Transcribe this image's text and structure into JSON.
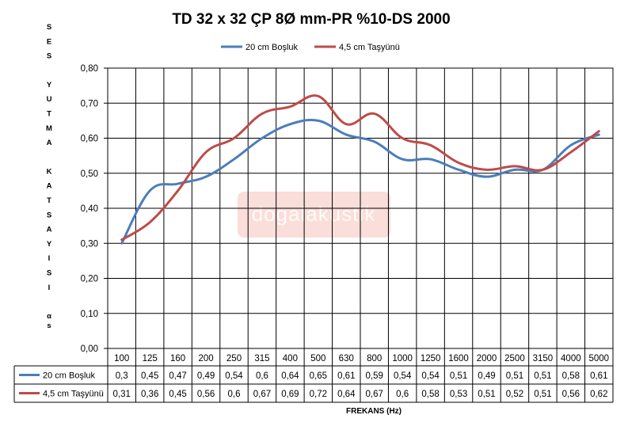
{
  "chart_data": {
    "type": "line",
    "title": "TD 32 x 32 ÇP 8Ø mm-PR %10-DS 2000",
    "ylabel": "SES YUTMA KATSAYISI αs",
    "xlabel": "FREKANS (Hz)",
    "categories": [
      "100",
      "125",
      "160",
      "200",
      "250",
      "315",
      "400",
      "500",
      "630",
      "800",
      "1000",
      "1250",
      "1600",
      "2000",
      "2500",
      "3150",
      "4000",
      "5000"
    ],
    "ylim": [
      0,
      0.8
    ],
    "yticks": [
      "0,00",
      "0,10",
      "0,20",
      "0,30",
      "0,40",
      "0,50",
      "0,60",
      "0,70",
      "0,80"
    ],
    "grid": true,
    "legend_position": "top",
    "series": [
      {
        "name": "20 cm Boşluk",
        "color": "#4a7ebb",
        "values": [
          0.3,
          0.45,
          0.47,
          0.49,
          0.54,
          0.6,
          0.64,
          0.65,
          0.61,
          0.59,
          0.54,
          0.54,
          0.51,
          0.49,
          0.51,
          0.51,
          0.58,
          0.61
        ],
        "labels": [
          "0,3",
          "0,45",
          "0,47",
          "0,49",
          "0,54",
          "0,6",
          "0,64",
          "0,65",
          "0,61",
          "0,59",
          "0,54",
          "0,54",
          "0,51",
          "0,49",
          "0,51",
          "0,51",
          "0,58",
          "0,61"
        ]
      },
      {
        "name": "4,5 cm Taşyünü",
        "color": "#be4b48",
        "values": [
          0.31,
          0.36,
          0.45,
          0.56,
          0.6,
          0.67,
          0.69,
          0.72,
          0.64,
          0.67,
          0.6,
          0.58,
          0.53,
          0.51,
          0.52,
          0.51,
          0.56,
          0.62
        ],
        "labels": [
          "0,31",
          "0,36",
          "0,45",
          "0,56",
          "0,6",
          "0,67",
          "0,69",
          "0,72",
          "0,64",
          "0,67",
          "0,6",
          "0,58",
          "0,53",
          "0,51",
          "0,52",
          "0,51",
          "0,56",
          "0,62"
        ]
      }
    ]
  },
  "watermark": "dogalakustik"
}
